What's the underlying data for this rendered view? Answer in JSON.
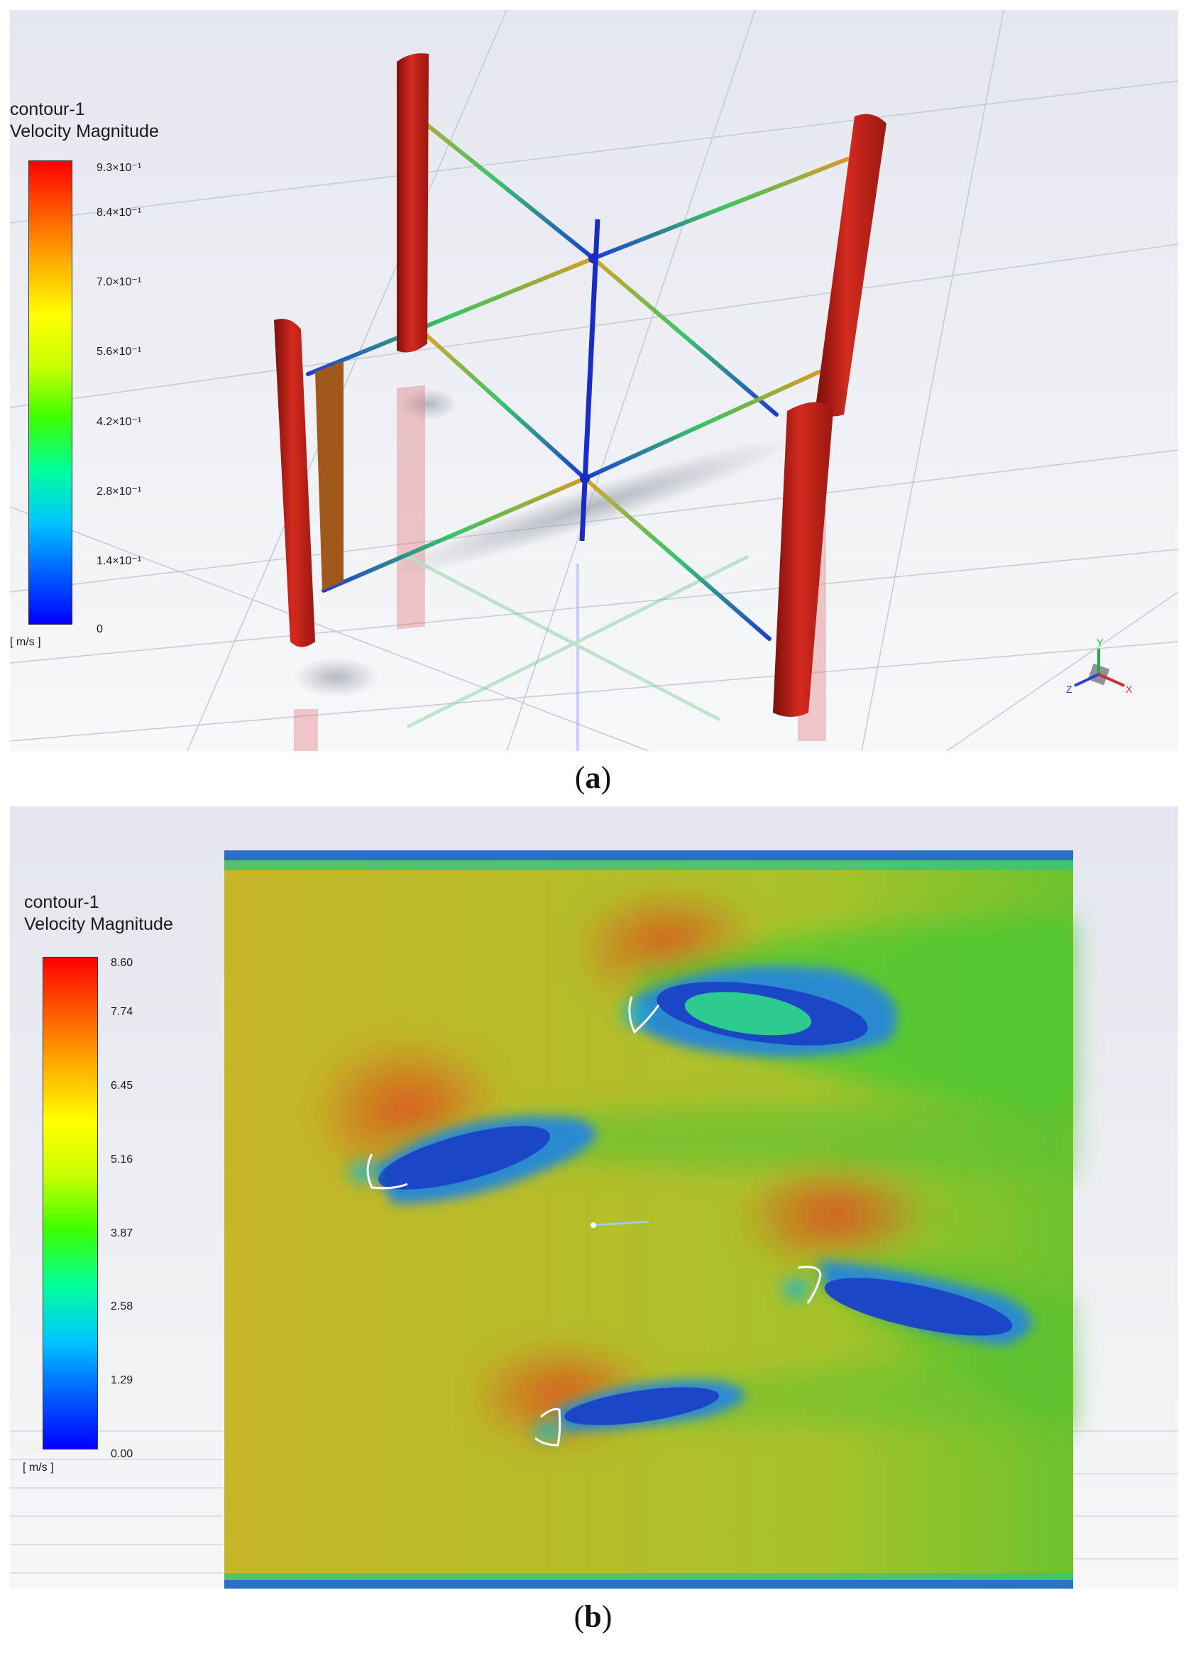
{
  "panel_a": {
    "legend_title_line1": "contour-1",
    "legend_title_line2": "Velocity Magnitude",
    "ticks": [
      "9.3×10⁻¹",
      "8.4×10⁻¹",
      "7.0×10⁻¹",
      "5.6×10⁻¹",
      "4.2×10⁻¹",
      "2.8×10⁻¹",
      "1.4×10⁻¹",
      "0"
    ],
    "tick_values": [
      0.93,
      0.84,
      0.7,
      0.56,
      0.42,
      0.28,
      0.14,
      0
    ],
    "unit": "[ m/s ]",
    "caption_letter": "a",
    "axes_labels": {
      "x": "X",
      "y": "Y",
      "z": "Z"
    }
  },
  "panel_b": {
    "legend_title_line1": "contour-1",
    "legend_title_line2": "Velocity Magnitude",
    "ticks": [
      "8.60",
      "7.74",
      "6.45",
      "5.16",
      "3.87",
      "2.58",
      "1.29",
      "0.00"
    ],
    "tick_values": [
      8.6,
      7.74,
      6.45,
      5.16,
      3.87,
      2.58,
      1.29,
      0.0
    ],
    "unit": "[ m/s ]",
    "caption_letter": "b"
  },
  "colormap": [
    "#0000ff",
    "#0060ff",
    "#00c8ff",
    "#00ff9a",
    "#3cff00",
    "#c8ff00",
    "#ffff00",
    "#ffb000",
    "#ff5a00",
    "#ff0000"
  ],
  "colors": {
    "blade": "#c8241c",
    "field": "#c9b82a",
    "wake": "#1a4fc8"
  }
}
